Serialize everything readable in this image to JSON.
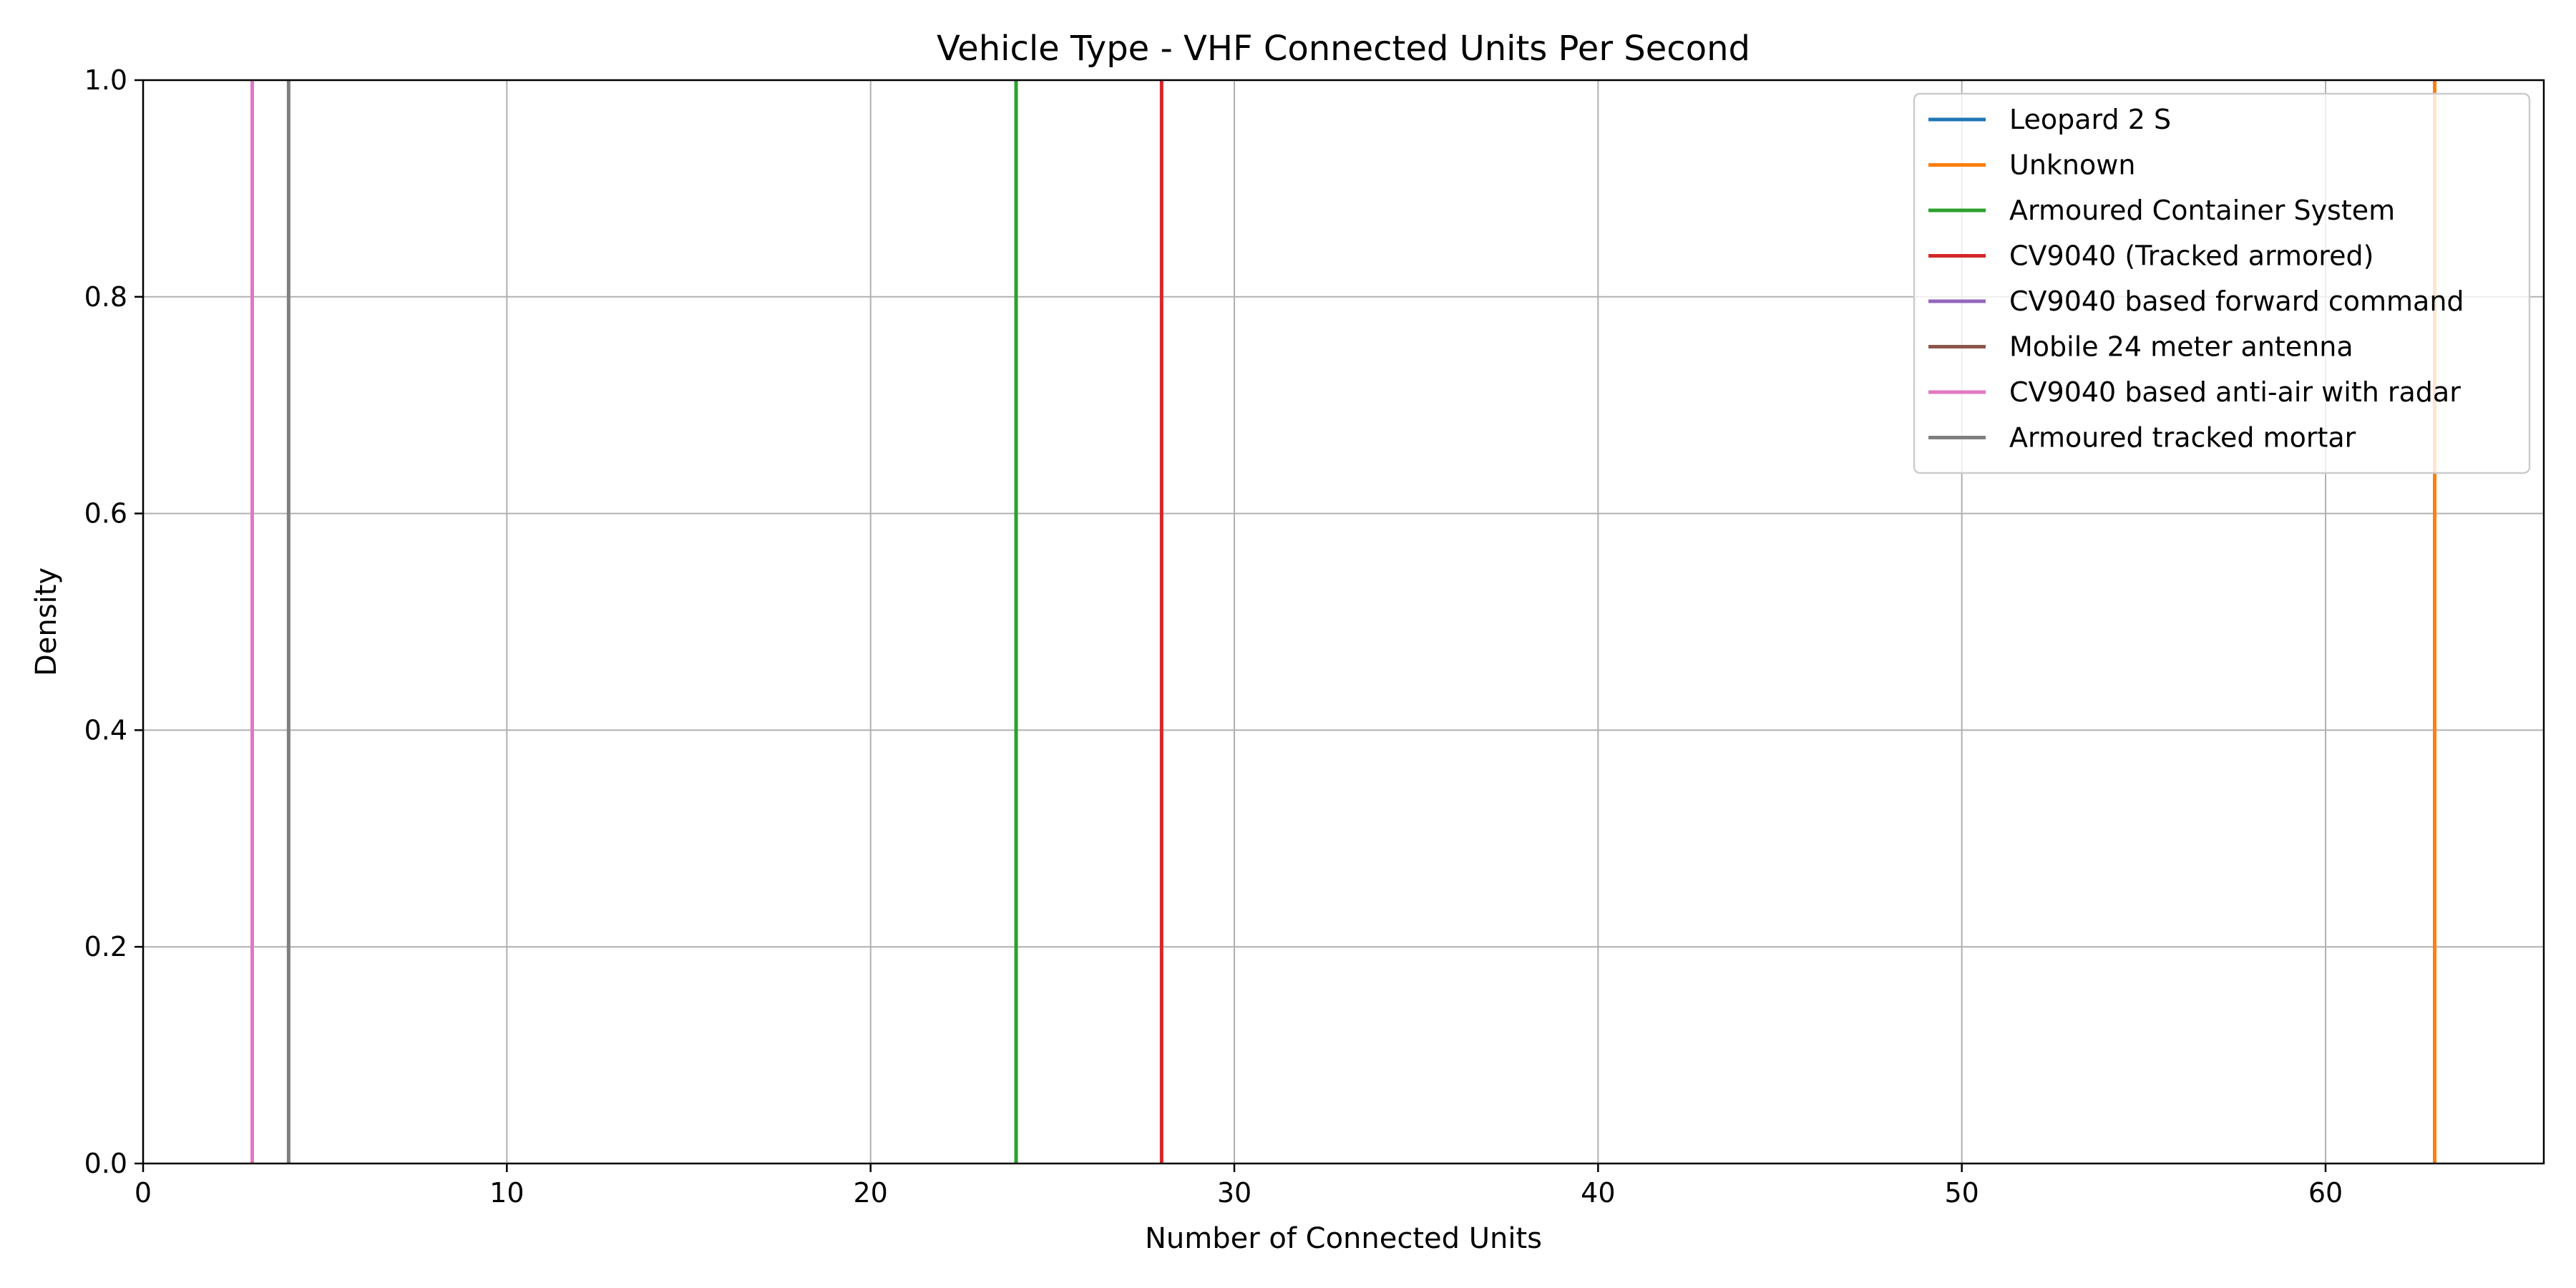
{
  "chart_data": {
    "type": "line",
    "title": "Vehicle Type - VHF Connected Units Per Second",
    "xlabel": "Number of Connected Units",
    "ylabel": "Density",
    "xlim": [
      0,
      66
    ],
    "ylim": [
      0,
      1
    ],
    "xticks": [
      0,
      10,
      20,
      30,
      40,
      50,
      60
    ],
    "yticks": [
      0.0,
      0.2,
      0.4,
      0.6,
      0.8,
      1.0
    ],
    "xtick_labels": [
      "0",
      "10",
      "20",
      "30",
      "40",
      "50",
      "60"
    ],
    "ytick_labels": [
      "0.0",
      "0.2",
      "0.4",
      "0.6",
      "0.8",
      "1.0"
    ],
    "grid": true,
    "legend_position": "top-right",
    "series": [
      {
        "name": "Leopard 2 S",
        "color": "#1f77b4",
        "x": null
      },
      {
        "name": "Unknown",
        "color": "#ff7f0e",
        "x": 63
      },
      {
        "name": "Armoured Container System",
        "color": "#2ca02c",
        "x": 24
      },
      {
        "name": "CV9040 (Tracked armored)",
        "color": "#d62728",
        "x": 28
      },
      {
        "name": "CV9040 based forward command",
        "color": "#9467bd",
        "x": null
      },
      {
        "name": "Mobile 24 meter antenna",
        "color": "#8c564b",
        "x": null
      },
      {
        "name": "CV9040 based anti-air with radar",
        "color": "#e377c2",
        "x": 3
      },
      {
        "name": "Armoured tracked mortar",
        "color": "#7f7f7f",
        "x": 4
      }
    ]
  }
}
